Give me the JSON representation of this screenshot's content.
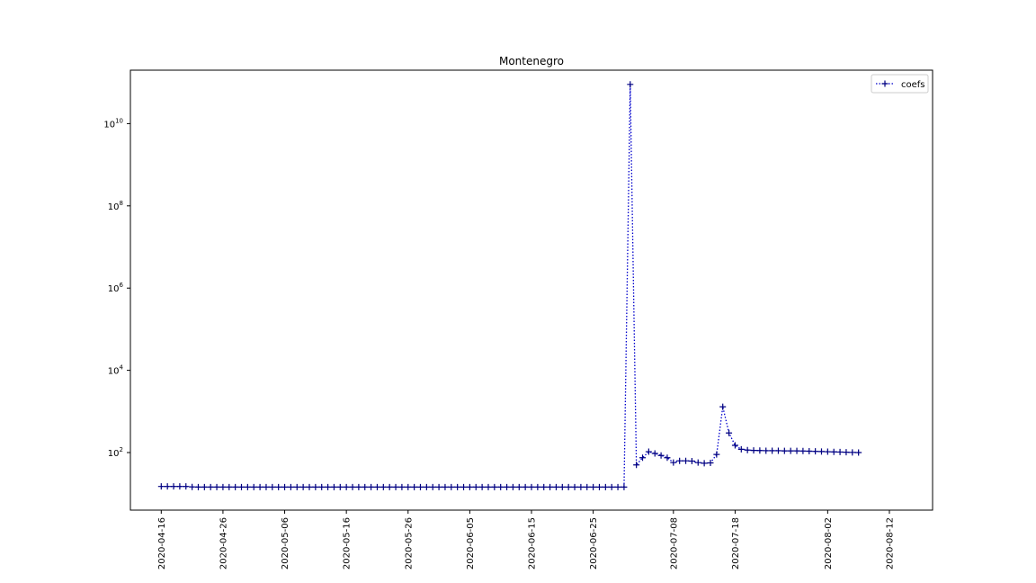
{
  "chart_data": {
    "type": "line",
    "title": "Montenegro",
    "xlabel": "",
    "ylabel": "",
    "y_scale": "log",
    "xlim": [
      "2020-04-11",
      "2020-08-19"
    ],
    "ylim_log10": [
      0.6,
      11.3
    ],
    "x_ticks": [
      "2020-04-16",
      "2020-04-26",
      "2020-05-06",
      "2020-05-16",
      "2020-05-26",
      "2020-06-05",
      "2020-06-15",
      "2020-06-25",
      "2020-07-08",
      "2020-07-18",
      "2020-08-02",
      "2020-08-12"
    ],
    "y_ticks": [
      {
        "base": "10",
        "exp": "2",
        "log10": 2
      },
      {
        "base": "10",
        "exp": "4",
        "log10": 4
      },
      {
        "base": "10",
        "exp": "6",
        "log10": 6
      },
      {
        "base": "10",
        "exp": "8",
        "log10": 8
      },
      {
        "base": "10",
        "exp": "10",
        "log10": 10
      }
    ],
    "grid": false,
    "legend_position": "top-right",
    "series": [
      {
        "name": "coefs",
        "color": "#0000cc",
        "line_style": "dotted",
        "marker": "+",
        "start_date": "2020-04-16",
        "values": [
          15,
          15,
          15,
          15,
          15,
          14.6,
          14.5,
          14.5,
          14.5,
          14.5,
          14.5,
          14.5,
          14.5,
          14.5,
          14.5,
          14.5,
          14.5,
          14.5,
          14.5,
          14.5,
          14.5,
          14.5,
          14.5,
          14.5,
          14.5,
          14.5,
          14.5,
          14.5,
          14.5,
          14.5,
          14.5,
          14.5,
          14.5,
          14.5,
          14.5,
          14.5,
          14.5,
          14.5,
          14.5,
          14.5,
          14.5,
          14.5,
          14.5,
          14.5,
          14.5,
          14.5,
          14.5,
          14.5,
          14.5,
          14.5,
          14.5,
          14.5,
          14.5,
          14.5,
          14.5,
          14.5,
          14.5,
          14.5,
          14.5,
          14.5,
          14.5,
          14.5,
          14.5,
          14.5,
          14.5,
          14.5,
          14.5,
          14.5,
          14.5,
          14.5,
          14.5,
          14.5,
          14.5,
          14.5,
          14.5,
          14.5,
          90000000000,
          50,
          75,
          105,
          95,
          85,
          75,
          57,
          63,
          63,
          62,
          57,
          55,
          56,
          90,
          1300,
          300,
          150,
          120,
          115,
          113,
          112,
          111,
          111,
          111,
          110,
          110,
          110,
          109,
          108,
          107,
          106,
          105,
          104,
          103,
          102,
          101,
          100
        ]
      }
    ]
  }
}
